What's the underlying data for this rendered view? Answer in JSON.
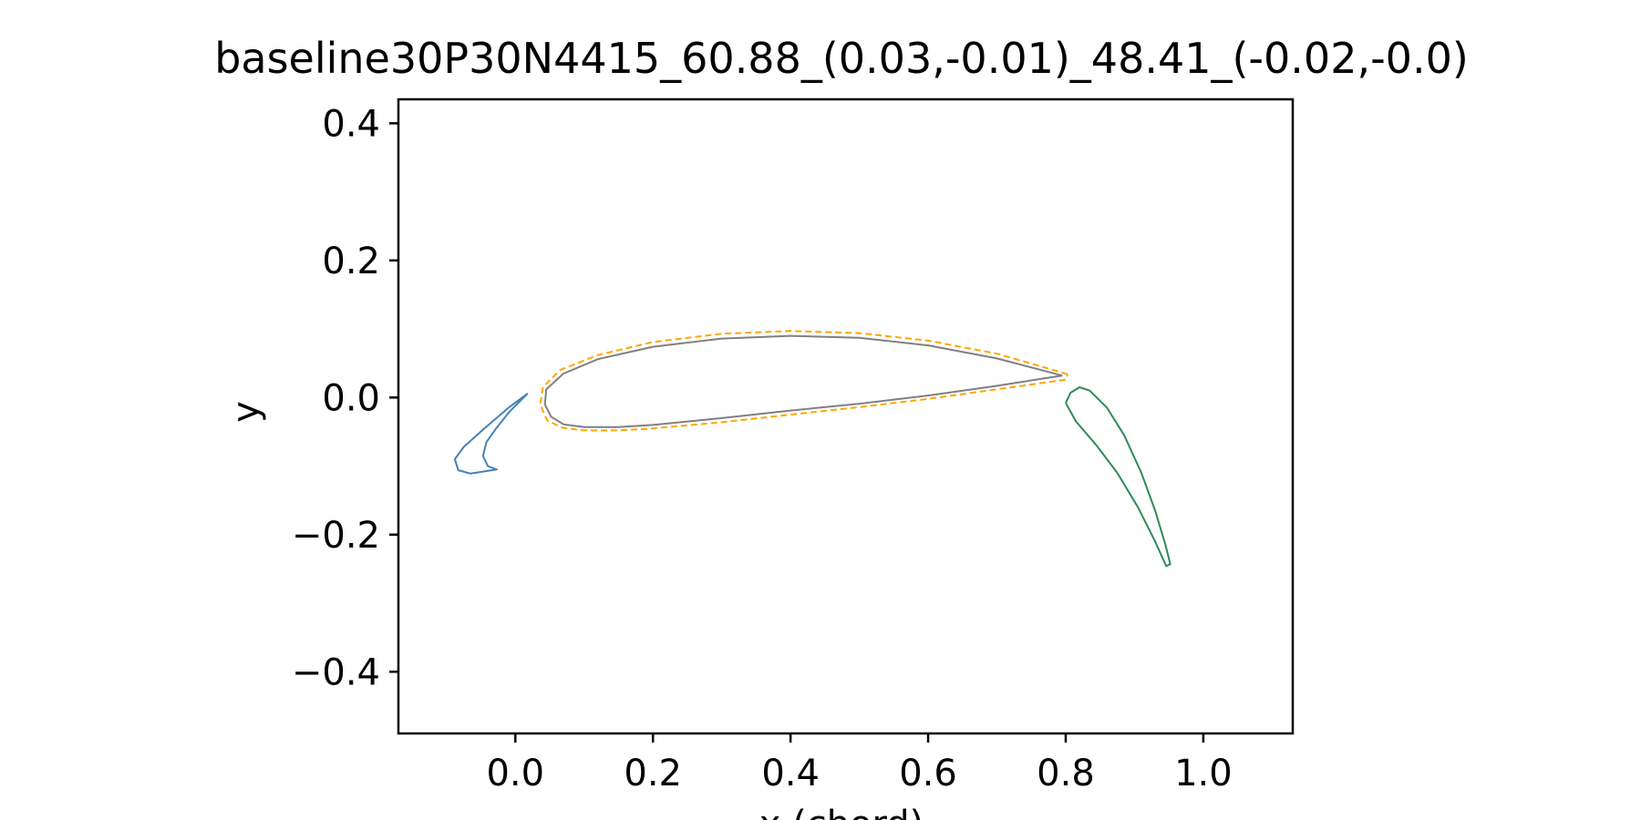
{
  "chart_data": {
    "type": "line",
    "title": "baseline30P30N4415_60.88_(0.03,-0.01)_48.41_(-0.02,-0.0)",
    "xlabel": "x (chord)",
    "ylabel": "y",
    "xlim": [
      -0.17,
      1.13
    ],
    "ylim": [
      -0.49,
      0.435
    ],
    "xticks": [
      0.0,
      0.2,
      0.4,
      0.6,
      0.8,
      1.0
    ],
    "xtick_labels": [
      "0.0",
      "0.2",
      "0.4",
      "0.6",
      "0.8",
      "1.0"
    ],
    "yticks": [
      0.4,
      0.2,
      0.0,
      -0.2,
      -0.4
    ],
    "ytick_labels": [
      "0.4",
      "0.2",
      "0.0",
      "−0.2",
      "−0.4"
    ],
    "grid": false,
    "series": [
      {
        "color": "#4682b4",
        "style": "solid",
        "points": [
          [
            0.018,
            0.006
          ],
          [
            -0.01,
            -0.015
          ],
          [
            -0.045,
            -0.045
          ],
          [
            -0.075,
            -0.072
          ],
          [
            -0.088,
            -0.09
          ],
          [
            -0.083,
            -0.106
          ],
          [
            -0.065,
            -0.111
          ],
          [
            -0.04,
            -0.107
          ],
          [
            -0.027,
            -0.105
          ],
          [
            -0.04,
            -0.1
          ],
          [
            -0.047,
            -0.085
          ],
          [
            -0.042,
            -0.065
          ],
          [
            -0.028,
            -0.045
          ],
          [
            -0.008,
            -0.02
          ],
          [
            0.018,
            0.006
          ]
        ]
      },
      {
        "color": "#808080",
        "style": "solid",
        "points": [
          [
            0.795,
            0.032
          ],
          [
            0.7,
            0.057
          ],
          [
            0.6,
            0.076
          ],
          [
            0.5,
            0.087
          ],
          [
            0.4,
            0.09
          ],
          [
            0.3,
            0.086
          ],
          [
            0.2,
            0.074
          ],
          [
            0.12,
            0.056
          ],
          [
            0.07,
            0.035
          ],
          [
            0.045,
            0.012
          ],
          [
            0.043,
            -0.01
          ],
          [
            0.052,
            -0.028
          ],
          [
            0.07,
            -0.039
          ],
          [
            0.1,
            -0.043
          ],
          [
            0.15,
            -0.043
          ],
          [
            0.2,
            -0.04
          ],
          [
            0.3,
            -0.03
          ],
          [
            0.4,
            -0.019
          ],
          [
            0.5,
            -0.009
          ],
          [
            0.6,
            0.003
          ],
          [
            0.7,
            0.017
          ],
          [
            0.795,
            0.032
          ]
        ]
      },
      {
        "color": "#ffa500",
        "style": "dashed",
        "points": [
          [
            0.803,
            0.034
          ],
          [
            0.7,
            0.064
          ],
          [
            0.6,
            0.083
          ],
          [
            0.5,
            0.094
          ],
          [
            0.4,
            0.097
          ],
          [
            0.3,
            0.093
          ],
          [
            0.2,
            0.081
          ],
          [
            0.12,
            0.062
          ],
          [
            0.065,
            0.04
          ],
          [
            0.04,
            0.015
          ],
          [
            0.036,
            -0.01
          ],
          [
            0.046,
            -0.033
          ],
          [
            0.068,
            -0.044
          ],
          [
            0.1,
            -0.048
          ],
          [
            0.15,
            -0.048
          ],
          [
            0.2,
            -0.045
          ],
          [
            0.3,
            -0.036
          ],
          [
            0.4,
            -0.025
          ],
          [
            0.5,
            -0.014
          ],
          [
            0.6,
            -0.002
          ],
          [
            0.7,
            0.012
          ],
          [
            0.8,
            0.026
          ],
          [
            0.803,
            0.034
          ]
        ]
      },
      {
        "color": "#2e8b57",
        "style": "solid",
        "points": [
          [
            0.8,
            -0.008
          ],
          [
            0.807,
            0.007
          ],
          [
            0.82,
            0.015
          ],
          [
            0.835,
            0.01
          ],
          [
            0.86,
            -0.015
          ],
          [
            0.885,
            -0.055
          ],
          [
            0.91,
            -0.11
          ],
          [
            0.93,
            -0.165
          ],
          [
            0.945,
            -0.215
          ],
          [
            0.952,
            -0.243
          ],
          [
            0.946,
            -0.246
          ],
          [
            0.93,
            -0.21
          ],
          [
            0.905,
            -0.16
          ],
          [
            0.875,
            -0.11
          ],
          [
            0.845,
            -0.07
          ],
          [
            0.815,
            -0.035
          ],
          [
            0.8,
            -0.008
          ]
        ]
      }
    ]
  }
}
